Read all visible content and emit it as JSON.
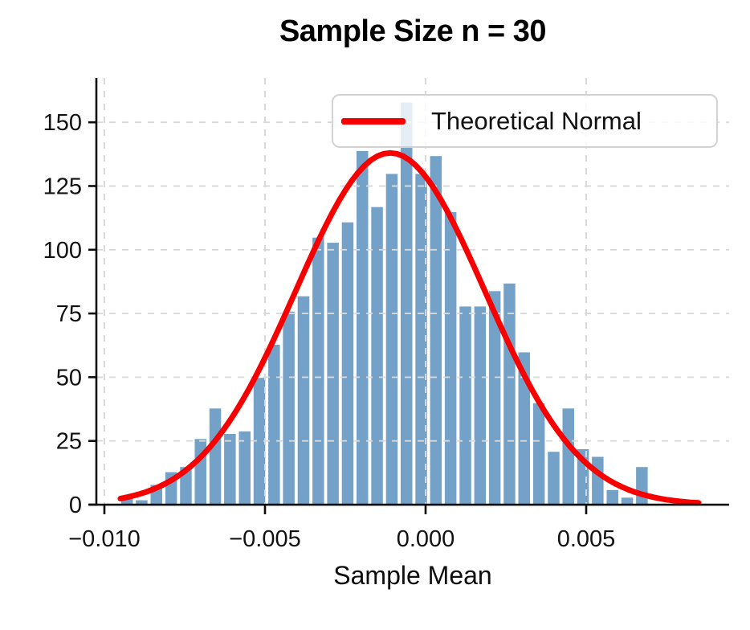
{
  "chart_data": {
    "type": "histogram",
    "title": "Sample Size n = 30",
    "xlabel": "Sample Mean",
    "ylabel": "",
    "xlim": [
      -0.01025,
      0.00945
    ],
    "ylim": [
      0,
      167
    ],
    "grid": {
      "visible": true,
      "style": "dashed",
      "color": "#d9d9d9"
    },
    "x_ticks": [
      {
        "value": -0.01,
        "label": "−0.010"
      },
      {
        "value": -0.005,
        "label": "−0.005"
      },
      {
        "value": 0.0,
        "label": "0.000"
      },
      {
        "value": 0.005,
        "label": "0.005"
      }
    ],
    "y_ticks": [
      {
        "value": 0,
        "label": "0"
      },
      {
        "value": 25,
        "label": "25"
      },
      {
        "value": 50,
        "label": "50"
      },
      {
        "value": 75,
        "label": "75"
      },
      {
        "value": 100,
        "label": "100"
      },
      {
        "value": 125,
        "label": "125"
      },
      {
        "value": 150,
        "label": "150"
      }
    ],
    "histogram": {
      "bin_start": -0.009525,
      "bin_width": 0.000458,
      "counts": [
        3,
        2,
        8,
        13,
        15,
        26,
        38,
        28,
        29,
        50,
        63,
        76,
        82,
        105,
        103,
        111,
        139,
        117,
        130,
        158,
        130,
        137,
        115,
        78,
        78,
        84,
        87,
        60,
        40,
        21,
        38,
        22,
        19,
        6,
        3,
        15
      ],
      "bar_color": "#74a1c7",
      "bar_edge_color": "#ffffff"
    },
    "normal_curve": {
      "name": "Theoretical Normal",
      "mean": -0.0011,
      "sigma": 0.00295,
      "peak": 138,
      "x_range": [
        -0.0095,
        0.0085
      ],
      "color": "#f80000",
      "line_width": 7
    },
    "legend": {
      "position": "upper right",
      "entries": [
        {
          "label": "Theoretical Normal",
          "color": "#f80000",
          "type": "line"
        }
      ]
    }
  }
}
